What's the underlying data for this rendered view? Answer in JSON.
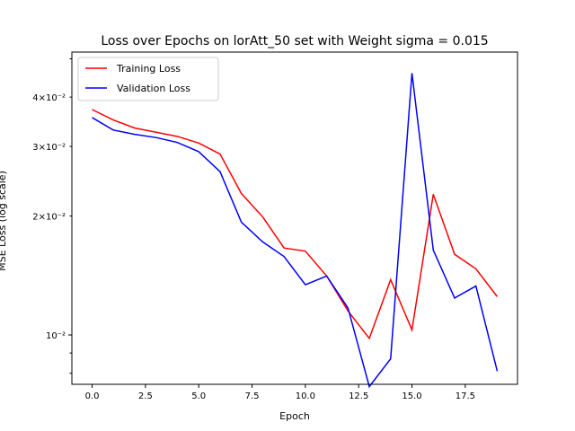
{
  "chart_data": {
    "type": "line",
    "title": "Loss over Epochs on lorAtt_50 set with Weight sigma = 0.015",
    "xlabel": "Epoch",
    "ylabel": "MSE Loss (log scale)",
    "y_scale": "log",
    "xlim": [
      -0.95,
      19.95
    ],
    "ylim": [
      0.0075,
      0.052
    ],
    "x_ticks": [
      0.0,
      2.5,
      5.0,
      7.5,
      10.0,
      12.5,
      15.0,
      17.5
    ],
    "x_tick_labels": [
      "0.0",
      "2.5",
      "5.0",
      "7.5",
      "10.0",
      "12.5",
      "15.0",
      "17.5"
    ],
    "y_major_ticks": [
      0.01
    ],
    "y_major_tick_labels": [
      "10⁻²"
    ],
    "y_labeled_minor_ticks": [
      0.02,
      0.03,
      0.04
    ],
    "y_labeled_minor_tick_labels": [
      "2×10⁻²",
      "3×10⁻²",
      "4×10⁻²"
    ],
    "y_minor_ticks": [
      0.008,
      0.009,
      0.02,
      0.03,
      0.04,
      0.05
    ],
    "grid": false,
    "legend_position": "top-left",
    "x": [
      0,
      1,
      2,
      3,
      4,
      5,
      6,
      7,
      8,
      9,
      10,
      11,
      12,
      13,
      14,
      15,
      16,
      17,
      18,
      19
    ],
    "series": [
      {
        "name": "Training Loss",
        "color": "#ff0000",
        "values": [
          0.0372,
          0.035,
          0.0334,
          0.0326,
          0.0318,
          0.0306,
          0.0287,
          0.0228,
          0.0199,
          0.0166,
          0.0163,
          0.0141,
          0.0115,
          0.0098,
          0.0138,
          0.0103,
          0.0227,
          0.016,
          0.0147,
          0.0125
        ]
      },
      {
        "name": "Validation Loss",
        "color": "#0000ff",
        "values": [
          0.0355,
          0.033,
          0.0322,
          0.0316,
          0.0307,
          0.0291,
          0.0259,
          0.0193,
          0.0172,
          0.0158,
          0.0134,
          0.0141,
          0.0117,
          0.0074,
          0.0087,
          0.046,
          0.0164,
          0.0124,
          0.0133,
          0.0081
        ]
      }
    ]
  }
}
